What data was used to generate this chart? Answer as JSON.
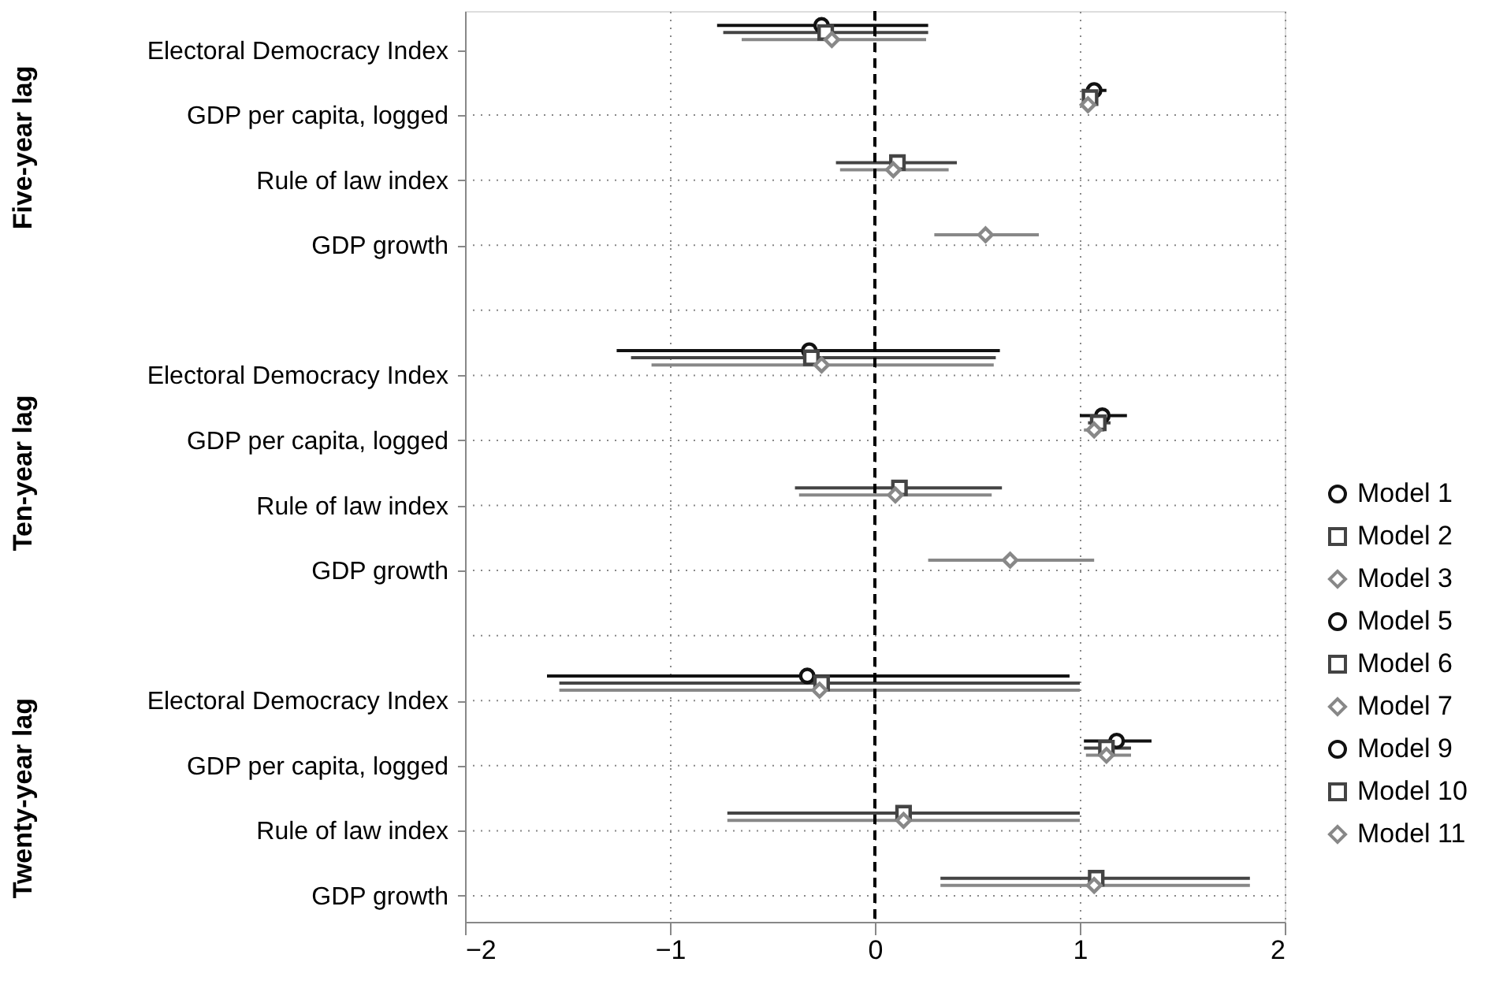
{
  "chart_data": {
    "type": "scatter",
    "orientation": "horizontal",
    "categories": [
      "Electoral Democracy Index",
      "GDP per capita, logged",
      "Rule of law index",
      "GDP growth",
      null,
      "Electoral Democracy Index",
      "GDP per capita, logged",
      "Rule of law index",
      "GDP growth",
      null,
      "Electoral Democracy Index",
      "GDP per capita, logged",
      "Rule of law index",
      "GDP growth"
    ],
    "annotations": [
      "Five-year lag",
      "Ten-year lag",
      "Twenty-year lag"
    ],
    "xlim": [
      -2,
      2
    ],
    "xticks": [
      -2,
      -1,
      0,
      1,
      2
    ],
    "grid": true,
    "legend": "right",
    "ref_lines": [
      {
        "axis": "x",
        "value": 0,
        "line_style": "dashed",
        "color": "#000000"
      }
    ],
    "series": [
      {
        "name": "Model 1",
        "color": "#111111",
        "marker": "circle",
        "values": [
          -0.26,
          1.07,
          null,
          null,
          null,
          null,
          null,
          null,
          null,
          null,
          null,
          null,
          null,
          null
        ],
        "errors": [
          [
            -0.77,
            0.26
          ],
          [
            1.01,
            1.13
          ],
          null,
          null,
          null,
          null,
          null,
          null,
          null,
          null,
          null,
          null,
          null,
          null
        ]
      },
      {
        "name": "Model 2",
        "color": "#444444",
        "marker": "square",
        "values": [
          -0.24,
          1.05,
          0.11,
          null,
          null,
          null,
          null,
          null,
          null,
          null,
          null,
          null,
          null,
          null
        ],
        "errors": [
          [
            -0.74,
            0.26
          ],
          [
            1.02,
            1.08
          ],
          [
            -0.19,
            0.4
          ],
          null,
          null,
          null,
          null,
          null,
          null,
          null,
          null,
          null,
          null,
          null
        ]
      },
      {
        "name": "Model 3",
        "color": "#888888",
        "marker": "diamond",
        "values": [
          -0.21,
          1.04,
          0.09,
          0.54,
          null,
          null,
          null,
          null,
          null,
          null,
          null,
          null,
          null,
          null
        ],
        "errors": [
          [
            -0.65,
            0.25
          ],
          [
            1.02,
            1.06
          ],
          [
            -0.17,
            0.36
          ],
          [
            0.29,
            0.8
          ],
          null,
          null,
          null,
          null,
          null,
          null,
          null,
          null,
          null,
          null
        ]
      },
      {
        "name": "Model 5",
        "color": "#111111",
        "marker": "circle",
        "values": [
          null,
          null,
          null,
          null,
          null,
          -0.32,
          1.11,
          null,
          null,
          null,
          null,
          null,
          null,
          null
        ],
        "errors": [
          null,
          null,
          null,
          null,
          null,
          [
            -1.26,
            0.61
          ],
          [
            1.0,
            1.23
          ],
          null,
          null,
          null,
          null,
          null,
          null,
          null
        ]
      },
      {
        "name": "Model 6",
        "color": "#444444",
        "marker": "square",
        "values": [
          null,
          null,
          null,
          null,
          null,
          -0.31,
          1.09,
          0.12,
          null,
          null,
          null,
          null,
          null,
          null
        ],
        "errors": [
          null,
          null,
          null,
          null,
          null,
          [
            -1.19,
            0.59
          ],
          [
            1.04,
            1.15
          ],
          [
            -0.39,
            0.62
          ],
          null,
          null,
          null,
          null,
          null,
          null
        ]
      },
      {
        "name": "Model 7",
        "color": "#888888",
        "marker": "diamond",
        "values": [
          null,
          null,
          null,
          null,
          null,
          -0.26,
          1.07,
          0.1,
          0.66,
          null,
          null,
          null,
          null,
          null
        ],
        "errors": [
          null,
          null,
          null,
          null,
          null,
          [
            -1.09,
            0.58
          ],
          [
            1.02,
            1.12
          ],
          [
            -0.37,
            0.57
          ],
          [
            0.26,
            1.07
          ],
          null,
          null,
          null,
          null,
          null
        ]
      },
      {
        "name": "Model 9",
        "color": "#111111",
        "marker": "circle",
        "values": [
          null,
          null,
          null,
          null,
          null,
          null,
          null,
          null,
          null,
          null,
          -0.33,
          1.18,
          null,
          null
        ],
        "errors": [
          null,
          null,
          null,
          null,
          null,
          null,
          null,
          null,
          null,
          null,
          [
            -1.6,
            0.95
          ],
          [
            1.02,
            1.35
          ],
          null,
          null
        ]
      },
      {
        "name": "Model 10",
        "color": "#444444",
        "marker": "square",
        "values": [
          null,
          null,
          null,
          null,
          null,
          null,
          null,
          null,
          null,
          null,
          -0.26,
          1.13,
          0.14,
          1.08
        ],
        "errors": [
          null,
          null,
          null,
          null,
          null,
          null,
          null,
          null,
          null,
          null,
          [
            -1.54,
            1.0
          ],
          [
            1.02,
            1.25
          ],
          [
            -0.72,
            1.0
          ],
          [
            0.32,
            1.83
          ]
        ]
      },
      {
        "name": "Model 11",
        "color": "#888888",
        "marker": "diamond",
        "values": [
          null,
          null,
          null,
          null,
          null,
          null,
          null,
          null,
          null,
          null,
          -0.27,
          1.13,
          0.14,
          1.07
        ],
        "errors": [
          null,
          null,
          null,
          null,
          null,
          null,
          null,
          null,
          null,
          null,
          [
            -1.54,
            1.0
          ],
          [
            1.03,
            1.25
          ],
          [
            -0.72,
            1.0
          ],
          [
            0.32,
            1.83
          ]
        ]
      }
    ]
  }
}
